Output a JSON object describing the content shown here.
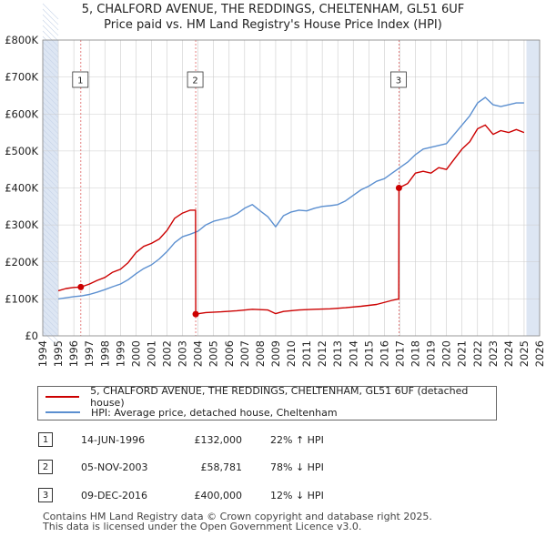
{
  "title": {
    "line1": "5, CHALFORD AVENUE, THE REDDINGS, CHELTENHAM, GL51 6UF",
    "line2": "Price paid vs. HM Land Registry's House Price Index (HPI)"
  },
  "colors": {
    "price_line": "#cc0000",
    "hpi_line": "#5b8fd0",
    "shade": "#dde6f3",
    "grid": "#cccccc",
    "marker_dashed": "#e06060"
  },
  "chart_data": {
    "type": "line",
    "title": "Price paid vs. HM Land Registry's House Price Index (HPI)",
    "xlabel": "",
    "ylabel": "",
    "xlim": [
      1994,
      2026
    ],
    "ylim": [
      0,
      800000
    ],
    "x_ticks": [
      1994,
      1995,
      1996,
      1997,
      1998,
      1999,
      2000,
      2001,
      2002,
      2003,
      2004,
      2005,
      2006,
      2007,
      2008,
      2009,
      2010,
      2011,
      2012,
      2013,
      2014,
      2015,
      2016,
      2017,
      2018,
      2019,
      2020,
      2021,
      2022,
      2023,
      2024,
      2025,
      2026
    ],
    "y_ticks": [
      {
        "value": 0,
        "label": "£0"
      },
      {
        "value": 100000,
        "label": "£100K"
      },
      {
        "value": 200000,
        "label": "£200K"
      },
      {
        "value": 300000,
        "label": "£300K"
      },
      {
        "value": 400000,
        "label": "£400K"
      },
      {
        "value": 500000,
        "label": "£500K"
      },
      {
        "value": 600000,
        "label": "£600K"
      },
      {
        "value": 700000,
        "label": "£700K"
      },
      {
        "value": 800000,
        "label": "£800K"
      }
    ],
    "data_range": [
      1995.0,
      2025.15
    ],
    "series": [
      {
        "name": "5, CHALFORD AVENUE, THE REDDINGS, CHELTENHAM, GL51 6UF (detached house)",
        "x": [
          1995.0,
          1995.5,
          1996.0,
          1996.45,
          1997.0,
          1997.5,
          1998.0,
          1998.5,
          1999.0,
          1999.5,
          2000.0,
          2000.5,
          2001.0,
          2001.5,
          2002.0,
          2002.5,
          2003.0,
          2003.5,
          2003.84,
          2003.85,
          2004.5,
          2005.5,
          2006.5,
          2007.5,
          2008.5,
          2009.0,
          2009.5,
          2010.5,
          2011.5,
          2012.5,
          2013.5,
          2014.5,
          2015.5,
          2016.5,
          2016.93,
          2016.94,
          2017.5,
          2018.0,
          2018.5,
          2019.0,
          2019.5,
          2020.0,
          2020.5,
          2021.0,
          2021.5,
          2022.0,
          2022.5,
          2023.0,
          2023.5,
          2024.0,
          2024.5,
          2025.0
        ],
        "values": [
          122000,
          128000,
          131000,
          132000,
          140000,
          150000,
          158000,
          172000,
          180000,
          198000,
          225000,
          242000,
          250000,
          262000,
          285000,
          318000,
          332000,
          340000,
          340000,
          58781,
          63000,
          65000,
          68000,
          72000,
          70000,
          60000,
          66000,
          70000,
          72000,
          73000,
          76000,
          80000,
          85000,
          96000,
          100000,
          400000,
          412000,
          440000,
          445000,
          440000,
          455000,
          450000,
          478000,
          505000,
          525000,
          560000,
          570000,
          545000,
          555000,
          550000,
          558000,
          550000
        ]
      },
      {
        "name": "HPI: Average price, detached house, Cheltenham",
        "x": [
          1995.0,
          1995.5,
          1996.0,
          1996.5,
          1997.0,
          1997.5,
          1998.0,
          1998.5,
          1999.0,
          1999.5,
          2000.0,
          2000.5,
          2001.0,
          2001.5,
          2002.0,
          2002.5,
          2003.0,
          2003.5,
          2004.0,
          2004.5,
          2005.0,
          2005.5,
          2006.0,
          2006.5,
          2007.0,
          2007.5,
          2008.0,
          2008.5,
          2009.0,
          2009.5,
          2010.0,
          2010.5,
          2011.0,
          2011.5,
          2012.0,
          2012.5,
          2013.0,
          2013.5,
          2014.0,
          2014.5,
          2015.0,
          2015.5,
          2016.0,
          2016.5,
          2017.0,
          2017.5,
          2018.0,
          2018.5,
          2019.0,
          2019.5,
          2020.0,
          2020.5,
          2021.0,
          2021.5,
          2022.0,
          2022.5,
          2023.0,
          2023.5,
          2024.0,
          2024.5,
          2025.0
        ],
        "values": [
          100000,
          103000,
          106000,
          108000,
          112000,
          118000,
          125000,
          133000,
          140000,
          152000,
          168000,
          182000,
          192000,
          208000,
          228000,
          252000,
          268000,
          275000,
          283000,
          300000,
          310000,
          315000,
          320000,
          330000,
          345000,
          355000,
          338000,
          322000,
          295000,
          325000,
          335000,
          340000,
          338000,
          345000,
          350000,
          352000,
          355000,
          365000,
          380000,
          395000,
          405000,
          418000,
          425000,
          440000,
          455000,
          470000,
          490000,
          505000,
          510000,
          515000,
          520000,
          545000,
          570000,
          595000,
          630000,
          645000,
          625000,
          620000,
          625000,
          630000,
          630000
        ]
      }
    ],
    "sales": [
      {
        "num": "1",
        "x": 1996.45,
        "value": 132000
      },
      {
        "num": "2",
        "x": 2003.85,
        "value": 58781
      },
      {
        "num": "3",
        "x": 2016.94,
        "value": 400000
      }
    ]
  },
  "legend": {
    "price_label": "5, CHALFORD AVENUE, THE REDDINGS, CHELTENHAM, GL51 6UF (detached house)",
    "hpi_label": "HPI: Average price, detached house, Cheltenham"
  },
  "sales_table": [
    {
      "num": "1",
      "date": "14-JUN-1996",
      "price": "£132,000",
      "hpi": "22% ↑ HPI"
    },
    {
      "num": "2",
      "date": "05-NOV-2003",
      "price": "£58,781",
      "hpi": "78% ↓ HPI"
    },
    {
      "num": "3",
      "date": "09-DEC-2016",
      "price": "£400,000",
      "hpi": "12% ↓ HPI"
    }
  ],
  "footer": {
    "line1": "Contains HM Land Registry data © Crown copyright and database right 2025.",
    "line2": "This data is licensed under the Open Government Licence v3.0."
  }
}
